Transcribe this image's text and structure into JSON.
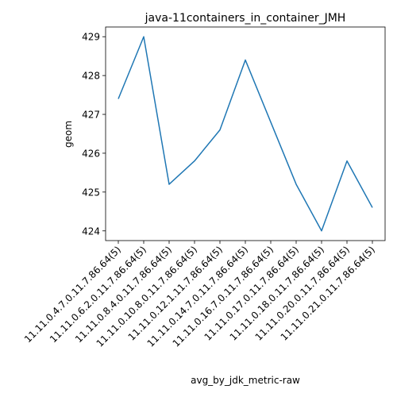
{
  "chart_data": {
    "type": "line",
    "title": "java-11containers_in_container_JMH",
    "xlabel": "avg_by_jdk_metric-raw",
    "ylabel": "geom",
    "categories": [
      "11.11.0.4.7.0.11.7.86.64(5)",
      "11.11.0.6.2.0.11.7.86.64(5)",
      "11.11.0.8.4.0.11.7.86.64(5)",
      "11.11.0.10.8.0.11.7.86.64(5)",
      "11.11.0.12.1.11.7.86.64(5)",
      "11.11.0.14.7.0.11.7.86.64(5)",
      "11.11.0.16.7.0.11.7.86.64(5)",
      "11.11.0.17.0.11.7.86.64(5)",
      "11.11.0.18.0.11.7.86.64(5)",
      "11.11.0.20.0.11.7.86.64(5)",
      "11.11.0.21.0.11.7.86.64(5)"
    ],
    "values": [
      427.4,
      429.0,
      425.2,
      425.8,
      426.6,
      428.4,
      426.8,
      425.2,
      424.0,
      425.8,
      424.6
    ],
    "ylim": [
      423.75,
      429.25
    ],
    "yticks": [
      424,
      425,
      426,
      427,
      428,
      429
    ],
    "grid": false,
    "line_color": "#1f77b4"
  }
}
